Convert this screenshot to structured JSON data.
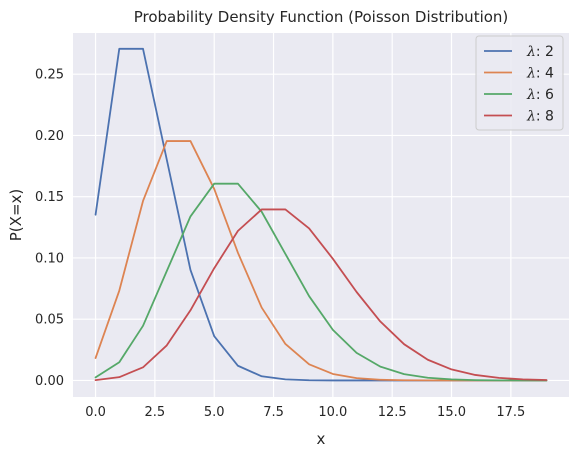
{
  "chart_data": {
    "type": "line",
    "title": "Probability Density Function (Poisson Distribution)",
    "xlabel": "x",
    "ylabel": "P(X=x)",
    "xlim": [
      -0.95,
      19.95
    ],
    "ylim": [
      -0.0135,
      0.2836
    ],
    "xticks": [
      0.0,
      2.5,
      5.0,
      7.5,
      10.0,
      12.5,
      15.0,
      17.5
    ],
    "xtick_labels": [
      "0.0",
      "2.5",
      "5.0",
      "7.5",
      "10.0",
      "12.5",
      "15.0",
      "17.5"
    ],
    "yticks": [
      0.0,
      0.05,
      0.1,
      0.15,
      0.2,
      0.25
    ],
    "ytick_labels": [
      "0.00",
      "0.05",
      "0.10",
      "0.15",
      "0.20",
      "0.25"
    ],
    "grid": true,
    "legend_position": "top-right",
    "x": [
      0,
      1,
      2,
      3,
      4,
      5,
      6,
      7,
      8,
      9,
      10,
      11,
      12,
      13,
      14,
      15,
      16,
      17,
      18,
      19
    ],
    "series": [
      {
        "name": "λ: 2",
        "legend_symbol": "λ",
        "legend_value": ": 2",
        "color": "#4c72b0",
        "values": [
          0.1353,
          0.2707,
          0.2707,
          0.1804,
          0.0902,
          0.0361,
          0.012,
          0.0034,
          0.0009,
          0.0002,
          0.0,
          0.0,
          0.0,
          0.0,
          0.0,
          0.0,
          0.0,
          0.0,
          0.0,
          0.0
        ]
      },
      {
        "name": "λ: 4",
        "legend_symbol": "λ",
        "legend_value": ": 4",
        "color": "#dd8452",
        "values": [
          0.0183,
          0.0733,
          0.1465,
          0.1954,
          0.1954,
          0.1563,
          0.1042,
          0.0595,
          0.0298,
          0.0132,
          0.0053,
          0.0019,
          0.0006,
          0.0002,
          0.0001,
          0.0,
          0.0,
          0.0,
          0.0,
          0.0
        ]
      },
      {
        "name": "λ: 6",
        "legend_symbol": "λ",
        "legend_value": ": 6",
        "color": "#55a868",
        "values": [
          0.0025,
          0.0149,
          0.0446,
          0.0892,
          0.1339,
          0.1606,
          0.1606,
          0.1377,
          0.1033,
          0.0688,
          0.0413,
          0.0225,
          0.0113,
          0.0052,
          0.0022,
          0.0009,
          0.0003,
          0.0001,
          0.0,
          0.0
        ]
      },
      {
        "name": "λ: 8",
        "legend_symbol": "λ",
        "legend_value": ": 8",
        "color": "#c44e52",
        "values": [
          0.0003,
          0.0027,
          0.0107,
          0.0286,
          0.0573,
          0.0916,
          0.1221,
          0.1396,
          0.1396,
          0.1241,
          0.0993,
          0.0722,
          0.0481,
          0.0296,
          0.0169,
          0.009,
          0.0045,
          0.0021,
          0.0009,
          0.0004
        ]
      }
    ]
  }
}
